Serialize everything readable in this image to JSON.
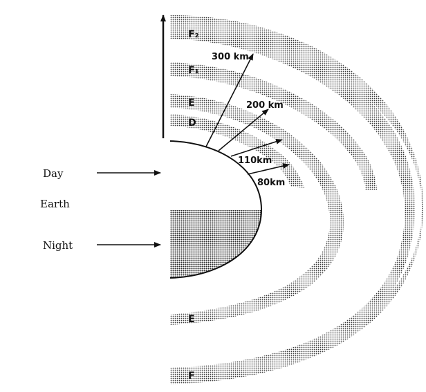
{
  "labels": {
    "day": "Day",
    "earth": "Earth",
    "night": "Night"
  },
  "layers": {
    "f2": "F₂",
    "f1": "F₁",
    "e_day": "E",
    "d": "D",
    "e_night": "E",
    "f_night": "F"
  },
  "heights": {
    "h300": "300 km",
    "h200": "200 km",
    "h110": "110km",
    "h80": "80km"
  },
  "colors": {
    "ink": "#111111",
    "stipple": "#3a3a3a",
    "background": "#ffffff"
  }
}
